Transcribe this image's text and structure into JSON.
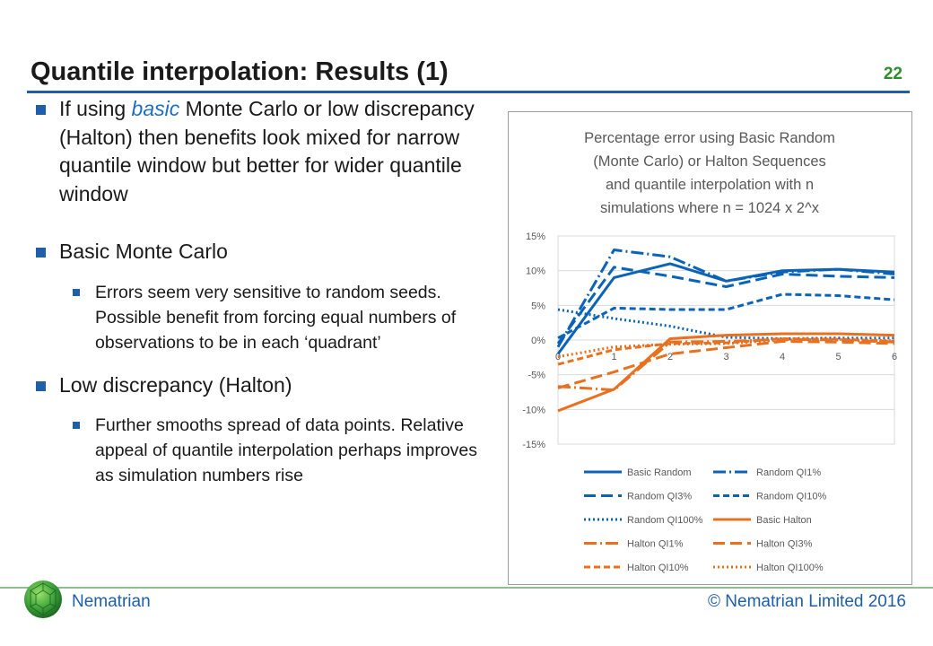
{
  "slide": {
    "title": "Quantile interpolation: Results (1)",
    "number": "22"
  },
  "bullets": {
    "b1": {
      "pre": "If using ",
      "highlight": "basic",
      "post": " Monte Carlo or low discrepancy (Halton) then benefits look mixed for narrow quantile window but better for wider quantile window"
    },
    "b2": {
      "text": "Basic Monte Carlo"
    },
    "b2_sub": {
      "text": "Errors seem very sensitive to random seeds. Possible benefit from forcing equal numbers of observations to be in each ‘quadrant’"
    },
    "b3": {
      "text": "Low discrepancy (Halton)"
    },
    "b3_sub": {
      "text": "Further smooths spread of data points. Relative appeal of quantile interpolation perhaps improves as simulation numbers rise"
    }
  },
  "footer": {
    "brand": "Nematrian",
    "copyright": "© Nematrian Limited 2016"
  },
  "colors": {
    "accent": "#1f5fa8",
    "random": "#0b63b8",
    "halton": "#e8701e"
  },
  "chart_data": {
    "type": "line",
    "title_lines": [
      "Percentage error using Basic Random",
      "(Monte Carlo) or Halton Sequences",
      "and quantile interpolation with n",
      "simulations where n = 1024 x 2^x"
    ],
    "x": [
      0,
      1,
      2,
      3,
      4,
      5,
      6
    ],
    "x_ticks": [
      "0",
      "1",
      "2",
      "3",
      "4",
      "5",
      "6"
    ],
    "ylim": [
      -0.15,
      0.15
    ],
    "y_ticks": [
      {
        "v": 0.15,
        "label": "15%"
      },
      {
        "v": 0.1,
        "label": "10%"
      },
      {
        "v": 0.05,
        "label": "5%"
      },
      {
        "v": 0.0,
        "label": "0%"
      },
      {
        "v": -0.05,
        "label": "-5%"
      },
      {
        "v": -0.1,
        "label": "-10%"
      },
      {
        "v": -0.15,
        "label": "-15%"
      }
    ],
    "grid": true,
    "legend_position": "bottom",
    "series": [
      {
        "name": "Basic Random",
        "color": "#0b63b8",
        "dash": "solid",
        "values": [
          -0.02,
          0.09,
          0.11,
          0.085,
          0.1,
          0.102,
          0.098
        ]
      },
      {
        "name": "Random QI1%",
        "color": "#0b63b8",
        "dash": "longdashdot",
        "values": [
          -0.01,
          0.13,
          0.12,
          0.085,
          0.098,
          0.102,
          0.095
        ]
      },
      {
        "name": "Random QI3%",
        "color": "#0b63b8",
        "dash": "longdash",
        "values": [
          -0.005,
          0.105,
          0.092,
          0.077,
          0.095,
          0.092,
          0.09
        ]
      },
      {
        "name": "Random QI10%",
        "color": "#0b63b8",
        "dash": "dash",
        "values": [
          0.003,
          0.046,
          0.044,
          0.044,
          0.066,
          0.064,
          0.058
        ]
      },
      {
        "name": "Random QI100%",
        "color": "#0b63b8",
        "dash": "dot",
        "values": [
          0.044,
          0.031,
          0.02,
          0.004,
          0.002,
          0.003,
          0.003
        ]
      },
      {
        "name": "Basic Halton",
        "color": "#e8701e",
        "dash": "solid",
        "values": [
          -0.102,
          -0.071,
          0.002,
          0.007,
          0.009,
          0.009,
          0.007
        ]
      },
      {
        "name": "Halton QI1%",
        "color": "#e8701e",
        "dash": "longdashdot",
        "values": [
          -0.067,
          -0.072,
          -0.003,
          -0.002,
          0.001,
          0.0,
          -0.003
        ]
      },
      {
        "name": "Halton QI3%",
        "color": "#e8701e",
        "dash": "longdash",
        "values": [
          -0.069,
          -0.046,
          -0.02,
          -0.011,
          -0.002,
          -0.003,
          -0.005
        ]
      },
      {
        "name": "Halton QI10%",
        "color": "#e8701e",
        "dash": "dash",
        "values": [
          -0.035,
          -0.014,
          -0.005,
          -0.004,
          0.002,
          0.001,
          -0.002
        ]
      },
      {
        "name": "Halton QI100%",
        "color": "#e8701e",
        "dash": "dot",
        "values": [
          -0.024,
          -0.01,
          -0.006,
          -0.005,
          0.0,
          0.001,
          -0.001
        ]
      }
    ]
  }
}
